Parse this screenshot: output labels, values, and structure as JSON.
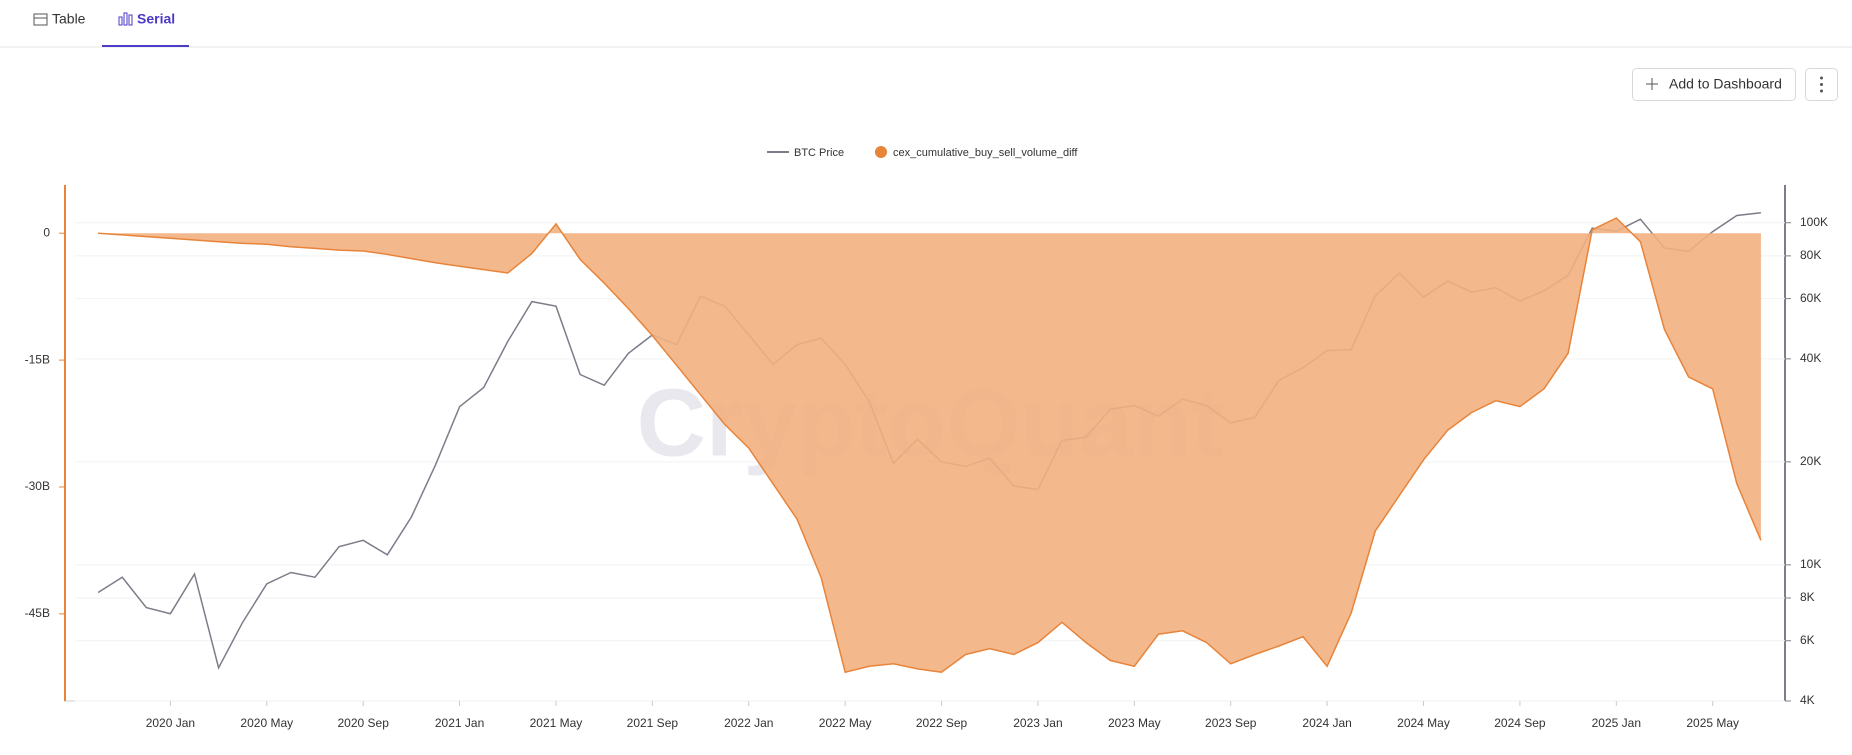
{
  "tabs": [
    "Table",
    "Serial"
  ],
  "actions": {
    "add": "Add to Dashboard"
  },
  "watermark": "CryptoQuant",
  "chart_data": {
    "type": "area-line",
    "x": [
      "2019-10",
      "2019-11",
      "2019-12",
      "2020-01",
      "2020-02",
      "2020-03",
      "2020-04",
      "2020-05",
      "2020-06",
      "2020-07",
      "2020-08",
      "2020-09",
      "2020-10",
      "2020-11",
      "2020-12",
      "2021-01",
      "2021-02",
      "2021-03",
      "2021-04",
      "2021-05",
      "2021-06",
      "2021-07",
      "2021-08",
      "2021-09",
      "2021-10",
      "2021-11",
      "2021-12",
      "2022-01",
      "2022-02",
      "2022-03",
      "2022-04",
      "2022-05",
      "2022-06",
      "2022-07",
      "2022-08",
      "2022-09",
      "2022-10",
      "2022-11",
      "2022-12",
      "2023-01",
      "2023-02",
      "2023-03",
      "2023-04",
      "2023-05",
      "2023-06",
      "2023-07",
      "2023-08",
      "2023-09",
      "2023-10",
      "2023-11",
      "2023-12",
      "2024-01",
      "2024-02",
      "2024-03",
      "2024-04",
      "2024-05",
      "2024-06",
      "2024-07",
      "2024-08",
      "2024-09",
      "2024-10",
      "2024-11",
      "2024-12",
      "2025-01",
      "2025-02",
      "2025-03",
      "2025-04",
      "2025-05",
      "2025-06",
      "2025-07"
    ],
    "series": [
      {
        "name": "BTC Price",
        "color": "#7d7d8a",
        "axis": "y2",
        "values": [
          8300,
          9200,
          7500,
          7200,
          9400,
          5000,
          6800,
          8800,
          9500,
          9200,
          11300,
          11800,
          10700,
          13800,
          19600,
          29000,
          33000,
          45000,
          58800,
          57000,
          36000,
          33500,
          41500,
          47000,
          44000,
          61000,
          57000,
          47000,
          38500,
          44000,
          46000,
          38500,
          30000,
          19800,
          23300,
          20000,
          19400,
          20500,
          17000,
          16600,
          23100,
          23600,
          28500,
          29200,
          27200,
          30500,
          29200,
          26000,
          27000,
          34600,
          37700,
          42300,
          42600,
          61100,
          71300,
          60600,
          67500,
          62700,
          64600,
          59000,
          63300,
          70200,
          96400,
          94400,
          102400,
          84300,
          82500,
          94200,
          105000,
          107000
        ]
      },
      {
        "name": "cex_cumulative_buy_sell_volume_diff",
        "color": "#e8843a",
        "fill": "#f2b07f",
        "values": [
          0,
          -200000000,
          -400000000,
          -600000000,
          -800000000,
          -1000000000,
          -1200000000,
          -1300000000,
          -1600000000,
          -1800000000,
          -2000000000,
          -2100000000,
          -2500000000,
          -3000000000,
          -3500000000,
          -3900000000,
          -4300000000,
          -4700000000,
          -2400000000,
          1100000000,
          -3100000000,
          -5900000000,
          -8900000000,
          -12100000000,
          -15600000000,
          -19100000000,
          -22600000000,
          -25400000000,
          -29600000000,
          -33800000000,
          -40700000000,
          -51900000000,
          -51200000000,
          -50900000000,
          -51500000000,
          -51900000000,
          -49800000000,
          -49100000000,
          -49800000000,
          -48400000000,
          -46000000000,
          -48400000000,
          -50500000000,
          -51200000000,
          -47400000000,
          -47000000000,
          -48400000000,
          -50900000000,
          -49800000000,
          -48800000000,
          -47700000000,
          -51200000000,
          -44900000000,
          -35200000000,
          -31000000000,
          -26800000000,
          -23300000000,
          -21200000000,
          -19800000000,
          -20500000000,
          -18400000000,
          -14200000000,
          400000000,
          1800000000,
          -1000000000,
          -11400000000,
          -17000000000,
          -18400000000,
          -29600000000,
          -36300000000
        ]
      }
    ],
    "xlim": [
      "2019-09",
      "2025-08"
    ],
    "xticks": [
      {
        "value": "2020-01",
        "label": "2020 Jan"
      },
      {
        "value": "2020-05",
        "label": "2020 May"
      },
      {
        "value": "2020-09",
        "label": "2020 Sep"
      },
      {
        "value": "2021-01",
        "label": "2021 Jan"
      },
      {
        "value": "2021-05",
        "label": "2021 May"
      },
      {
        "value": "2021-09",
        "label": "2021 Sep"
      },
      {
        "value": "2022-01",
        "label": "2022 Jan"
      },
      {
        "value": "2022-05",
        "label": "2022 May"
      },
      {
        "value": "2022-09",
        "label": "2022 Sep"
      },
      {
        "value": "2023-01",
        "label": "2023 Jan"
      },
      {
        "value": "2023-05",
        "label": "2023 May"
      },
      {
        "value": "2023-09",
        "label": "2023 Sep"
      },
      {
        "value": "2024-01",
        "label": "2024 Jan"
      },
      {
        "value": "2024-05",
        "label": "2024 May"
      },
      {
        "value": "2024-09",
        "label": "2024 Sep"
      },
      {
        "value": "2025-01",
        "label": "2025 Jan"
      },
      {
        "value": "2025-05",
        "label": "2025 May"
      }
    ],
    "ylim": [
      -55300000000,
      5700000000
    ],
    "yticks": [
      0,
      {
        "value": -15000000000,
        "label": "-15B"
      },
      {
        "value": -30000000000,
        "label": "-30B"
      },
      {
        "value": -45000000000,
        "label": "-45B"
      }
    ],
    "y2lim": [
      4000,
      128900
    ],
    "y2log": true,
    "y2ticks": [
      {
        "value": 100000,
        "label": "100K"
      },
      {
        "value": 80000,
        "label": "80K"
      },
      {
        "value": 60000,
        "label": "60K"
      },
      {
        "value": 40000,
        "label": "40K"
      },
      {
        "value": 20000,
        "label": "20K"
      },
      {
        "value": 10000,
        "label": "10K"
      },
      {
        "value": 8000,
        "label": "8K"
      },
      {
        "value": 6000,
        "label": "6K"
      },
      {
        "value": 4000,
        "label": "4K"
      }
    ],
    "grid": true,
    "legend": "top"
  }
}
